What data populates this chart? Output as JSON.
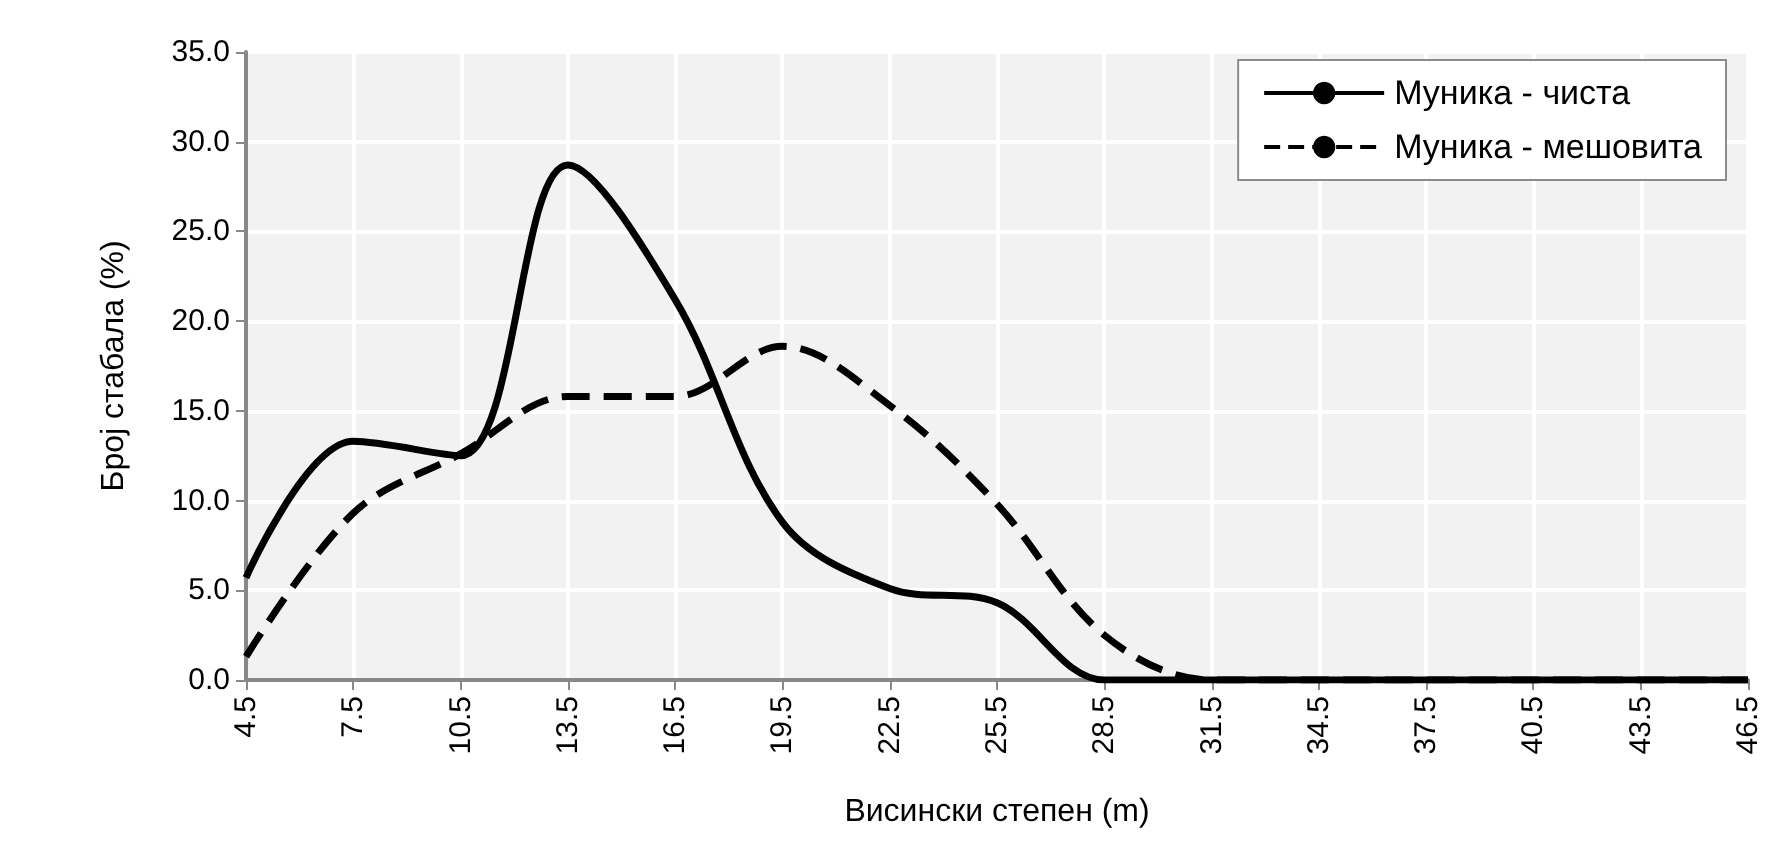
{
  "chart_data": {
    "type": "line",
    "xlabel": "Висински степен (m)",
    "ylabel": "Број стабала (%)",
    "categories": [
      "4.5",
      "7.5",
      "10.5",
      "13.5",
      "16.5",
      "19.5",
      "22.5",
      "25.5",
      "28.5",
      "31.5",
      "34.5",
      "37.5",
      "40.5",
      "43.5",
      "46.5"
    ],
    "series": [
      {
        "name": "Муника - чиста",
        "color": "#000000",
        "line_style": "solid",
        "values": [
          5.7,
          13.3,
          12.5,
          28.7,
          21.2,
          8.8,
          5.1,
          4.3,
          0,
          0,
          0,
          0,
          0,
          0,
          0
        ]
      },
      {
        "name": "Муника - мешовита",
        "color": "#000000",
        "line_style": "dashed",
        "values": [
          1.3,
          9.3,
          12.6,
          15.8,
          15.8,
          18.6,
          15.3,
          9.8,
          2.5,
          0,
          0,
          0,
          0,
          0,
          0
        ]
      }
    ],
    "ylim": [
      0,
      35
    ],
    "yticks": [
      {
        "value": 0,
        "label": "0.0"
      },
      {
        "value": 5,
        "label": "5.0"
      },
      {
        "value": 10,
        "label": "10.0"
      },
      {
        "value": 15,
        "label": "15.0"
      },
      {
        "value": 20,
        "label": "20.0"
      },
      {
        "value": 25,
        "label": "25.0"
      },
      {
        "value": 30,
        "label": "30.0"
      },
      {
        "value": 35,
        "label": "35.0"
      }
    ],
    "grid": true,
    "legend": "top right",
    "marker": "none"
  }
}
